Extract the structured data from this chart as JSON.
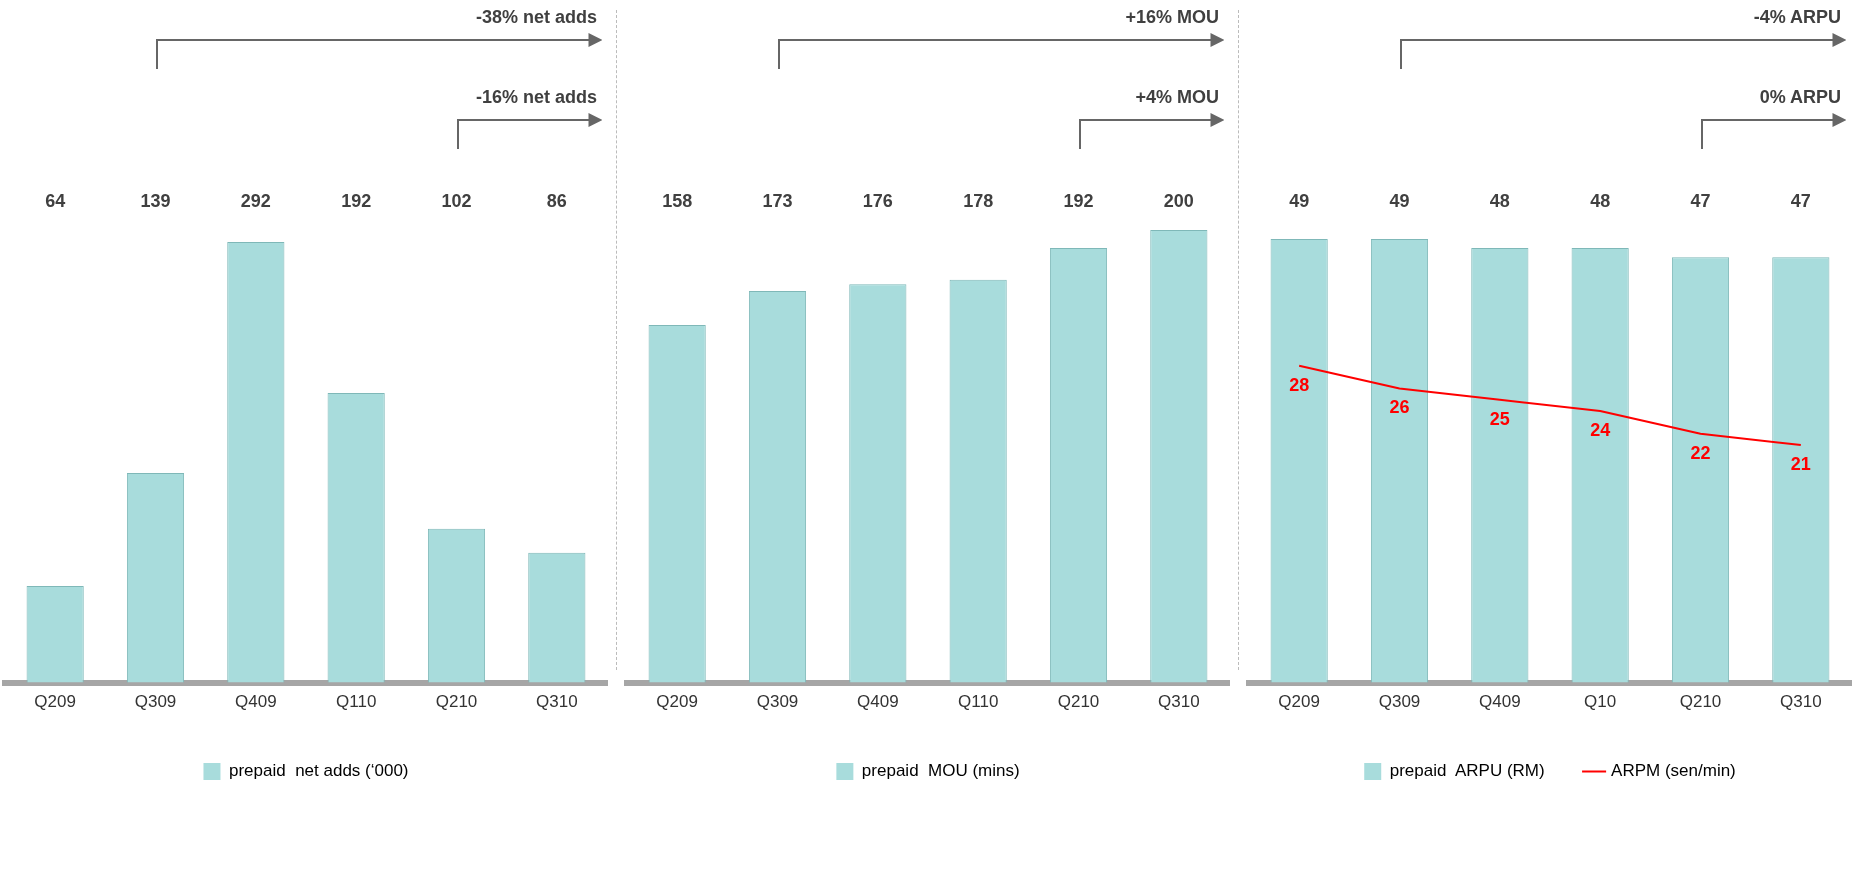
{
  "chart_data": [
    {
      "type": "bar",
      "categories": [
        "Q209",
        "Q309",
        "Q409",
        "Q110",
        "Q210",
        "Q310"
      ],
      "series": [
        {
          "name": "prepaid  net adds (‘000)",
          "color": "#a8dcdc",
          "values": [
            64,
            139,
            292,
            192,
            102,
            86
          ]
        }
      ],
      "annotations": [
        "-38% net adds",
        "-16% net adds"
      ],
      "data_labels": true,
      "tick_labels": "x",
      "grid": false,
      "legend": "bottom"
    },
    {
      "type": "bar",
      "categories": [
        "Q209",
        "Q309",
        "Q409",
        "Q110",
        "Q210",
        "Q310"
      ],
      "series": [
        {
          "name": "prepaid  MOU (mins)",
          "color": "#a8dcdc",
          "values": [
            158,
            173,
            176,
            178,
            192,
            200
          ]
        }
      ],
      "annotations": [
        "+16% MOU",
        "+4% MOU"
      ],
      "data_labels": true,
      "tick_labels": "x",
      "grid": false,
      "legend": "bottom"
    },
    {
      "type": "bar",
      "categories": [
        "Q209",
        "Q309",
        "Q409",
        "Q10",
        "Q210",
        "Q310"
      ],
      "series": [
        {
          "name": "prepaid  ARPU (RM)",
          "color": "#a8dcdc",
          "values": [
            49,
            49,
            48,
            48,
            47,
            47
          ]
        },
        {
          "type": "line",
          "name": "ARPM (sen/min)",
          "color": "#ff0000",
          "axis": "y2",
          "values": [
            28,
            26,
            25,
            24,
            22,
            21
          ]
        }
      ],
      "annotations": [
        "-4% ARPU",
        "0% ARPU"
      ],
      "data_labels": true,
      "tick_labels": "x",
      "grid": false,
      "legend": "bottom",
      "marker": "none"
    }
  ]
}
